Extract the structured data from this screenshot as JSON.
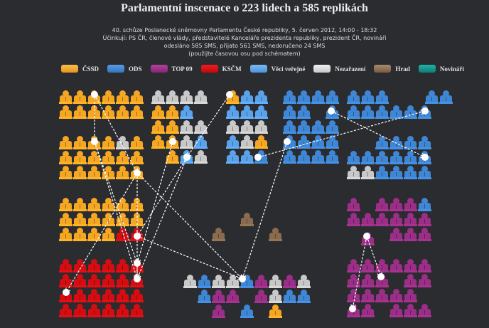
{
  "header": {
    "title": "Parlamentní inscenace o 223 lidech a 585 replikách",
    "session": "40. schůze Poslanecké sněmovny Parlamentu České republiky, 5. červen 2012, 14:00 - 18:32",
    "cast": "Účinkují: PS ČR, členové vlády, představitelé Kanceláře prezidenta republiky, prezident ČR, novináři",
    "stats": "odesláno 585 SMS, přijato 561 SMS, nedoručeno 24 SMS",
    "hint": "(použijte časovou osu pod schématem)"
  },
  "legend": [
    {
      "key": "cssd",
      "label": "ČSSD",
      "color": "#f5a623"
    },
    {
      "key": "ods",
      "label": "ODS",
      "color": "#3f86d4"
    },
    {
      "key": "top09",
      "label": "TOP 09",
      "color": "#9b2e86"
    },
    {
      "key": "kscm",
      "label": "KSČM",
      "color": "#d40d12"
    },
    {
      "key": "vv",
      "label": "Věci veřejné",
      "color": "#5aa2ea"
    },
    {
      "key": "nez",
      "label": "Nezařazení",
      "color": "#cfcfcf"
    },
    {
      "key": "hrad",
      "label": "Hrad",
      "color": "#8b6b4e"
    },
    {
      "key": "nov",
      "label": "Novináři",
      "color": "#12948c"
    }
  ],
  "colors": {
    "O": "#f5a623",
    "B": "#3f86d4",
    "V": "#5aa2ea",
    "P": "#9b2e86",
    "R": "#d40d12",
    "G": "#c8c8c8",
    "H": "#8b6b4e",
    "T": "#12948c"
  },
  "seating": {
    "blocks": [
      {
        "name": "block-cssd-top",
        "rows": [
          "OOOOOO",
          "OOOOOO"
        ]
      },
      {
        "name": "block-cssd-mid",
        "rows": [
          "OOOOGO",
          "OOOOOO",
          "OOOOOO"
        ]
      },
      {
        "name": "block-mixed-left",
        "rows": [
          "GGGG",
          "OOV.",
          "OOGG",
          "OOGV",
          ".OVG"
        ]
      },
      {
        "name": "block-mixed-center",
        "rows": [
          "OVV",
          "VVV",
          "GGG",
          "VGO",
          "VVB"
        ]
      },
      {
        "name": "block-ods-center",
        "rows": [
          "BBBB",
          "BB.B",
          "BBBB",
          "BBBB",
          "BBBB"
        ]
      },
      {
        "name": "block-ods-right-top",
        "rows": [
          "BBB.BB",
          "BBBBBB"
        ]
      },
      {
        "name": "block-ods-right-bottom",
        "rows": [
          "..BBBB",
          "BBBBBB",
          "GGBBBB"
        ]
      },
      {
        "name": "block-cssd-lower",
        "rows": [
          "OOOOOO",
          "OOOOOO",
          "OOOORR"
        ]
      },
      {
        "name": "block-kscm",
        "rows": [
          "RRRRRR",
          "RRRRRR",
          "RRRRRR",
          "RRRRRR"
        ]
      },
      {
        "name": "block-top09-upper",
        "rows": [
          "P.PPPB",
          "PPPPPP",
          ".P.PPP"
        ]
      },
      {
        "name": "block-top09-lower",
        "rows": [
          "PPPPPP",
          "PPP.PP",
          "PPPPP.",
          "PP.PPP"
        ]
      },
      {
        "name": "block-government",
        "rows": [
          "GBGGBPGPG",
          ".BPP.PGBB",
          "..P.B.O.."
        ]
      },
      {
        "name": "block-hrad",
        "rows": [
          ".H.",
          "H.H"
        ]
      }
    ]
  }
}
